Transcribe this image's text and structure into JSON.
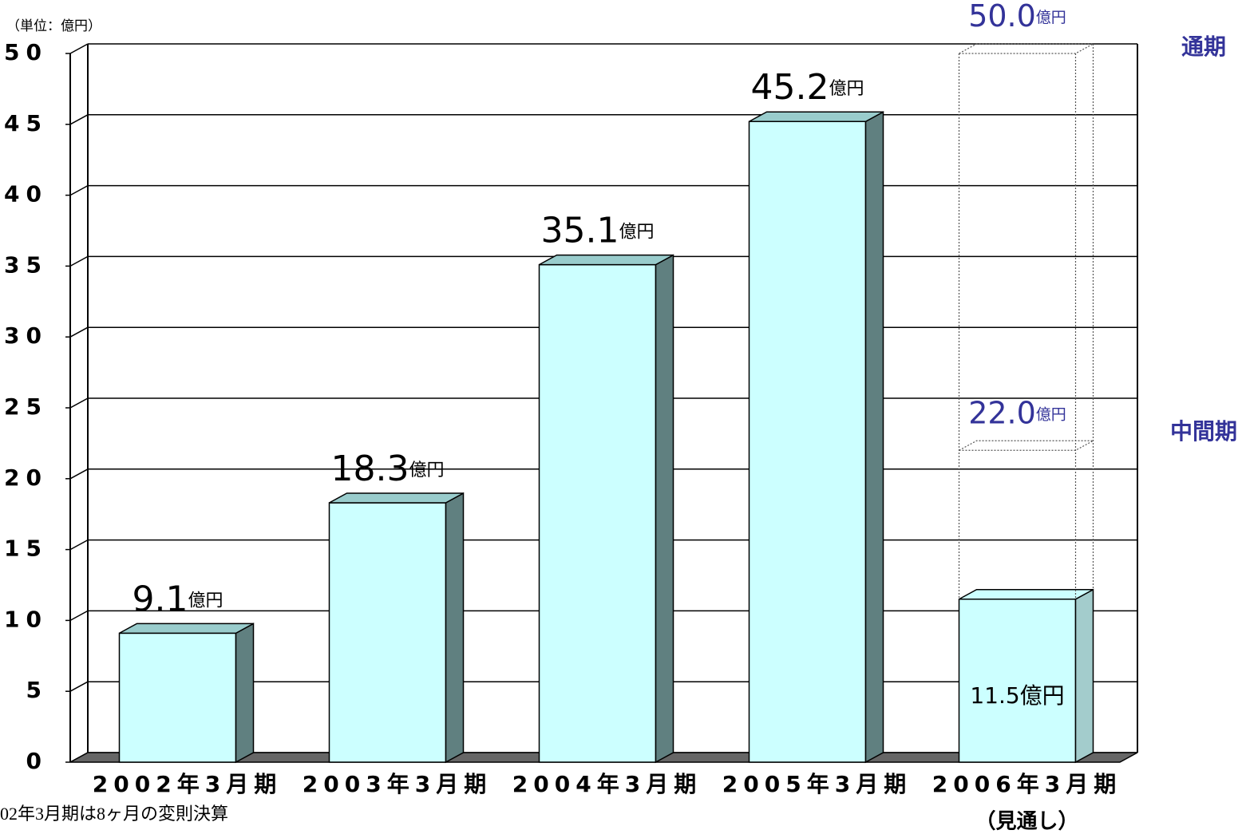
{
  "chart_data": {
    "type": "bar3d",
    "unit_note": "（単位：億円）",
    "unit": "億円",
    "categories": [
      "2002年3月期",
      "2003年3月期",
      "2004年3月期",
      "2005年3月期",
      "2006年3月期"
    ],
    "category_note": "（見通し）",
    "values": [
      9.1,
      18.3,
      35.1,
      45.2,
      11.5
    ],
    "ylim": [
      0,
      50
    ],
    "yticks": [
      0,
      5,
      10,
      15,
      20,
      25,
      30,
      35,
      40,
      45,
      50
    ],
    "grid": true,
    "colors": {
      "front": "#ccffff",
      "side": "#608080",
      "top": "#99cccc",
      "forecast_side": "#a3cccc",
      "forecast_label": "#333399"
    },
    "forecast": [
      {
        "name": "通期",
        "value": 50,
        "label": "50.0"
      },
      {
        "name": "中間期",
        "value": 22,
        "label": "22.0"
      }
    ],
    "footnote": "02年3月期は8ヶ月の変則決算"
  }
}
